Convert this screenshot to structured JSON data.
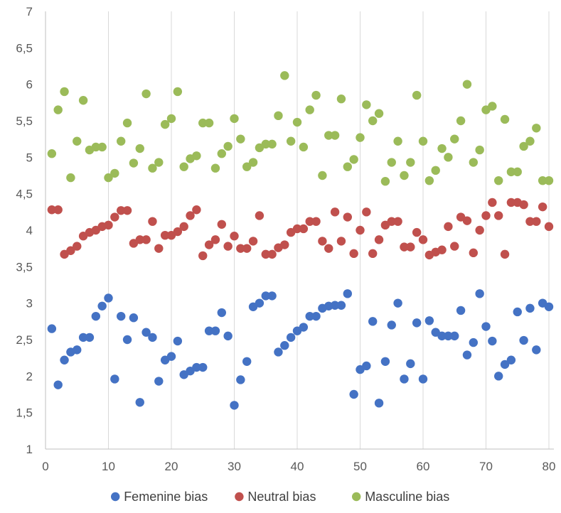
{
  "chart_data": {
    "type": "scatter",
    "title": "",
    "xlabel": "",
    "ylabel": "",
    "xlim": [
      0,
      82
    ],
    "ylim": [
      1,
      7
    ],
    "grid": "vertical",
    "legend_position": "bottom",
    "x_ticks": [
      "0",
      "10",
      "20",
      "30",
      "40",
      "50",
      "60",
      "70",
      "80"
    ],
    "y_ticks": [
      "1",
      "1,5",
      "2",
      "2,5",
      "3",
      "3,5",
      "4",
      "4,5",
      "5",
      "5,5",
      "6",
      "6,5",
      "7"
    ],
    "x_tick_values": [
      0,
      10,
      20,
      30,
      40,
      50,
      60,
      70,
      80
    ],
    "y_tick_values": [
      1,
      1.5,
      2,
      2.5,
      3,
      3.5,
      4,
      4.5,
      5,
      5.5,
      6,
      6.5,
      7
    ],
    "x": [
      1,
      2,
      3,
      4,
      5,
      6,
      7,
      8,
      9,
      10,
      11,
      12,
      13,
      14,
      15,
      16,
      17,
      18,
      19,
      20,
      21,
      22,
      23,
      24,
      25,
      26,
      27,
      28,
      29,
      30,
      31,
      32,
      33,
      34,
      35,
      36,
      37,
      38,
      39,
      40,
      41,
      42,
      43,
      44,
      45,
      46,
      47,
      48,
      49,
      50,
      51,
      52,
      53,
      54,
      55,
      56,
      57,
      58,
      59,
      60,
      61,
      62,
      63,
      64,
      65,
      66,
      67,
      68,
      69,
      70,
      71,
      72,
      73,
      74,
      75,
      76,
      77,
      78,
      79,
      80
    ],
    "series": [
      {
        "name": "Femenine bias",
        "color": "#4472c4",
        "values": [
          2.65,
          1.88,
          2.22,
          2.33,
          2.36,
          2.53,
          2.53,
          2.82,
          2.96,
          3.07,
          1.96,
          2.82,
          2.5,
          2.8,
          1.64,
          2.6,
          2.53,
          1.93,
          2.22,
          2.27,
          2.48,
          2.02,
          2.07,
          2.12,
          2.12,
          2.62,
          2.62,
          2.87,
          2.55,
          1.6,
          1.95,
          2.2,
          2.95,
          3.0,
          3.1,
          3.1,
          2.33,
          2.42,
          2.53,
          2.62,
          2.67,
          2.82,
          2.82,
          2.93,
          2.96,
          2.97,
          2.97,
          3.13,
          1.75,
          2.09,
          2.14,
          2.75,
          1.63,
          2.2,
          2.7,
          3.0,
          1.96,
          2.17,
          2.73,
          1.96,
          2.76,
          2.6,
          2.55,
          2.55,
          2.55,
          2.9,
          2.29,
          2.46,
          3.13,
          2.68,
          2.48,
          2.0,
          2.16,
          2.22,
          2.88,
          2.49,
          2.93,
          2.36,
          3.0,
          2.95
        ]
      },
      {
        "name": "Neutral bias",
        "color": "#c0504d",
        "values": [
          4.28,
          4.28,
          3.67,
          3.72,
          3.78,
          3.92,
          3.97,
          4.0,
          4.05,
          4.07,
          4.18,
          4.27,
          4.27,
          3.82,
          3.87,
          3.87,
          4.12,
          3.75,
          3.93,
          3.93,
          3.98,
          4.05,
          4.2,
          4.28,
          3.65,
          3.8,
          3.87,
          4.08,
          3.78,
          3.92,
          3.75,
          3.75,
          3.85,
          4.2,
          3.67,
          3.67,
          3.76,
          3.8,
          3.97,
          4.02,
          4.02,
          4.12,
          4.12,
          3.85,
          3.75,
          4.25,
          3.85,
          4.18,
          3.68,
          4.0,
          4.25,
          3.68,
          3.87,
          4.07,
          4.12,
          4.12,
          3.77,
          3.77,
          3.97,
          3.87,
          3.66,
          3.7,
          3.73,
          4.05,
          3.78,
          4.18,
          4.13,
          3.69,
          4.0,
          4.2,
          4.38,
          4.2,
          3.67,
          4.38,
          4.38,
          4.35,
          4.12,
          4.12,
          4.32,
          4.05
        ]
      },
      {
        "name": "Masculine bias",
        "color": "#9bbb59",
        "values": [
          5.05,
          5.65,
          5.9,
          4.72,
          5.22,
          5.78,
          5.1,
          5.14,
          5.14,
          4.72,
          4.78,
          5.22,
          5.47,
          4.92,
          5.12,
          5.87,
          4.85,
          4.93,
          5.45,
          5.53,
          5.9,
          4.87,
          4.98,
          5.02,
          5.47,
          5.47,
          4.85,
          5.05,
          5.15,
          5.53,
          5.25,
          4.87,
          4.93,
          5.13,
          5.18,
          5.18,
          5.57,
          6.12,
          5.22,
          5.48,
          5.14,
          5.65,
          5.85,
          4.75,
          5.3,
          5.3,
          5.8,
          4.87,
          4.97,
          5.27,
          5.72,
          5.5,
          5.6,
          4.67,
          4.93,
          5.22,
          4.75,
          4.93,
          5.85,
          5.22,
          4.68,
          4.82,
          5.12,
          5.0,
          5.25,
          5.5,
          6.0,
          4.93,
          5.1,
          5.65,
          5.7,
          4.68,
          5.52,
          4.8,
          4.8,
          5.15,
          5.22,
          5.4,
          4.68,
          4.68
        ]
      }
    ]
  }
}
